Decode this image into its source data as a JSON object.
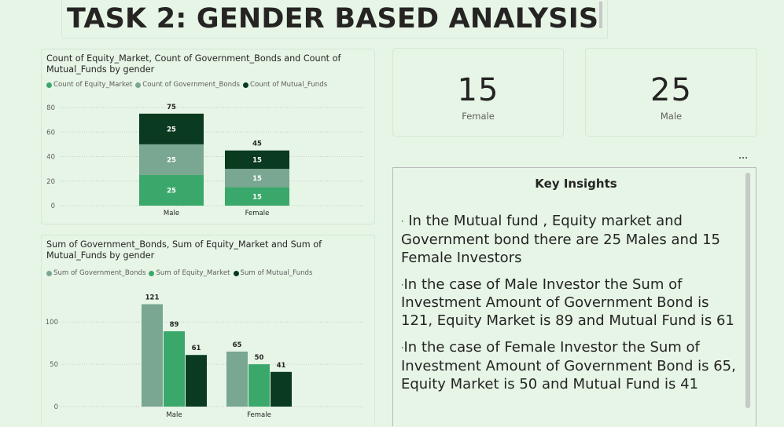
{
  "header": {
    "title": "TASK 2: GENDER BASED ANALYSIS"
  },
  "chart1": {
    "title_line1": "Count of Equity_Market, Count of Government_Bonds and Count of",
    "title_line2": "Mutual_Funds by gender",
    "legend": [
      "Count of Equity_Market",
      "Count of Government_Bonds",
      "Count of Mutual_Funds"
    ]
  },
  "chart2": {
    "title_line1": "Sum of Government_Bonds, Sum of Equity_Market and Sum of",
    "title_line2": "Mutual_Funds by gender",
    "legend": [
      "Sum of Government_Bonds",
      "Sum of Equity_Market",
      "Sum of Mutual_Funds"
    ]
  },
  "kpis": [
    {
      "value": "15",
      "label": "Female"
    },
    {
      "value": "25",
      "label": "Male"
    }
  ],
  "insights": {
    "title": "Key Insights",
    "paragraphs": [
      "In the Mutual fund , Equity market  and Government  bond there are  25 Males and 15 Female Investors",
      "In the case of Male Investor the Sum of Investment  Amount of Government Bond is 121, Equity Market is 89 and Mutual Fund is 61",
      "In the case of Female Investor the Sum of Investment  Amount of Government Bond is 65, Equity Market is 50 and Mutual Fund is 41"
    ]
  },
  "colors": {
    "equity": "#3aa86b",
    "gov": "#79a791",
    "mutual": "#0a3a20"
  },
  "chart_data": [
    {
      "type": "bar",
      "stacked": true,
      "categories": [
        "Male",
        "Female"
      ],
      "series": [
        {
          "name": "Count of Equity_Market",
          "values": [
            25,
            15
          ]
        },
        {
          "name": "Count of Government_Bonds",
          "values": [
            25,
            15
          ]
        },
        {
          "name": "Count of Mutual_Funds",
          "values": [
            25,
            15
          ]
        }
      ],
      "totals": [
        75,
        45
      ],
      "yticks": [
        0,
        20,
        40,
        60,
        80
      ],
      "ylim": [
        0,
        80
      ],
      "legend_position": "top-left",
      "grid": true
    },
    {
      "type": "bar",
      "stacked": false,
      "categories": [
        "Male",
        "Female"
      ],
      "series": [
        {
          "name": "Sum of Government_Bonds",
          "values": [
            121,
            65
          ]
        },
        {
          "name": "Sum of Equity_Market",
          "values": [
            89,
            50
          ]
        },
        {
          "name": "Sum of Mutual_Funds",
          "values": [
            61,
            41
          ]
        }
      ],
      "yticks": [
        0,
        50,
        100
      ],
      "ylim": [
        0,
        128
      ],
      "legend_position": "top-left",
      "grid": true
    }
  ]
}
